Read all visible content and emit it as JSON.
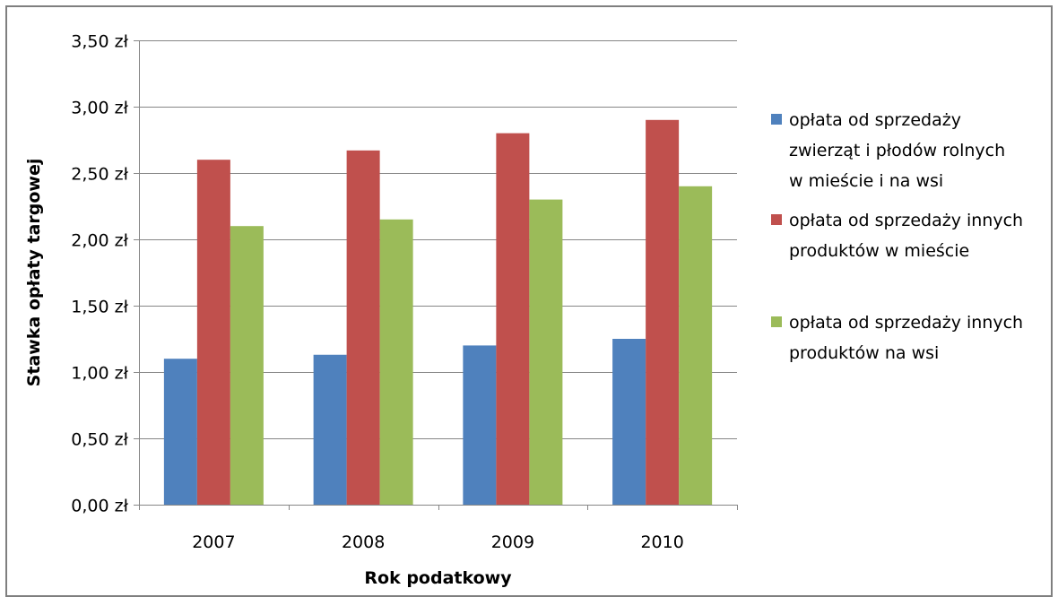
{
  "chart_data": {
    "type": "bar",
    "title": "",
    "xlabel": "Rok podatkowy",
    "ylabel": "Stawka opłaty targowej",
    "categories": [
      "2007",
      "2008",
      "2009",
      "2010"
    ],
    "ylim": [
      0,
      3.5
    ],
    "yticks": [
      0,
      0.5,
      1.0,
      1.5,
      2.0,
      2.5,
      3.0,
      3.5
    ],
    "yticks_labels": [
      "0,00 zł",
      "0,50 zł",
      "1,00 zł",
      "1,50 zł",
      "2,00 zł",
      "2,50 zł",
      "3,00 zł",
      "3,50 zł"
    ],
    "grid": true,
    "legend_position": "right",
    "series": [
      {
        "name": "opłata od sprzedaży zwierząt i płodów rolnych w mieście i na wsi",
        "legend_lines": [
          "opłata od sprzedaży",
          "zwierząt i płodów rolnych",
          "w mieście i na wsi"
        ],
        "color": "#4f81bd",
        "values": [
          1.1,
          1.13,
          1.2,
          1.25
        ]
      },
      {
        "name": "opłata od sprzedaży innych produktów w mieście",
        "legend_lines": [
          "opłata od sprzedaży innych",
          "produktów w mieście"
        ],
        "color": "#c0504d",
        "values": [
          2.6,
          2.67,
          2.8,
          2.9
        ]
      },
      {
        "name": "opłata od sprzedaży innych produktów na wsi",
        "legend_lines": [
          "opłata od sprzedaży innych",
          "produktów na wsi"
        ],
        "color": "#9bbb59",
        "values": [
          2.1,
          2.15,
          2.3,
          2.4
        ]
      }
    ]
  }
}
